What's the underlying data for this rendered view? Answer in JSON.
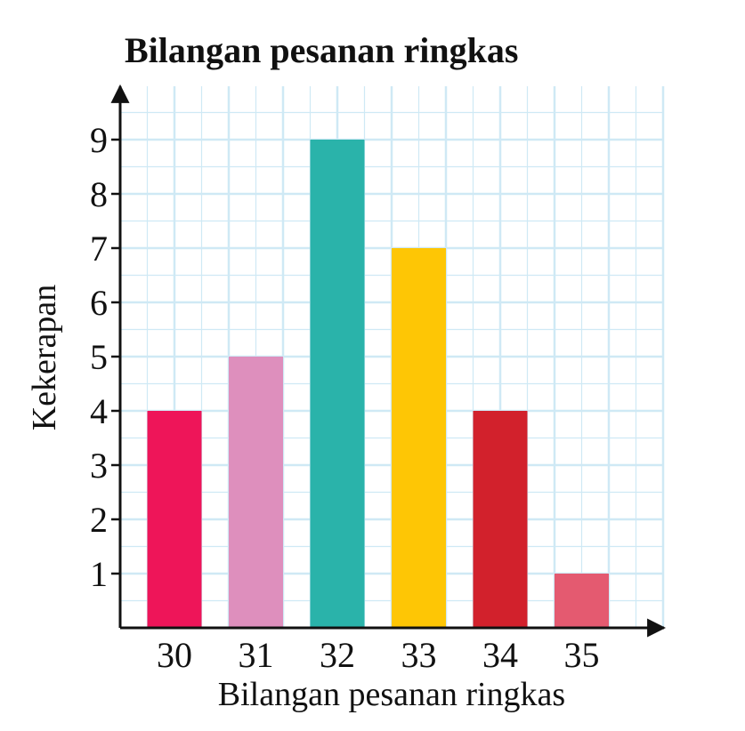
{
  "chart_data": {
    "type": "bar",
    "title": "Bilangan pesanan ringkas",
    "xlabel": "Bilangan pesanan ringkas",
    "ylabel": "Kekerapan",
    "categories": [
      "30",
      "31",
      "32",
      "33",
      "34",
      "35"
    ],
    "values": [
      4,
      5,
      9,
      7,
      4,
      1
    ],
    "colors": [
      "#ee1559",
      "#de8fbd",
      "#2ab3aa",
      "#fec605",
      "#d2212c",
      "#e45a70"
    ],
    "y_ticks": [
      1,
      2,
      3,
      4,
      5,
      6,
      7,
      8,
      9
    ],
    "ylim": [
      0,
      10
    ],
    "grid": true,
    "grid_color": "#cfe9f5",
    "legend": false
  }
}
